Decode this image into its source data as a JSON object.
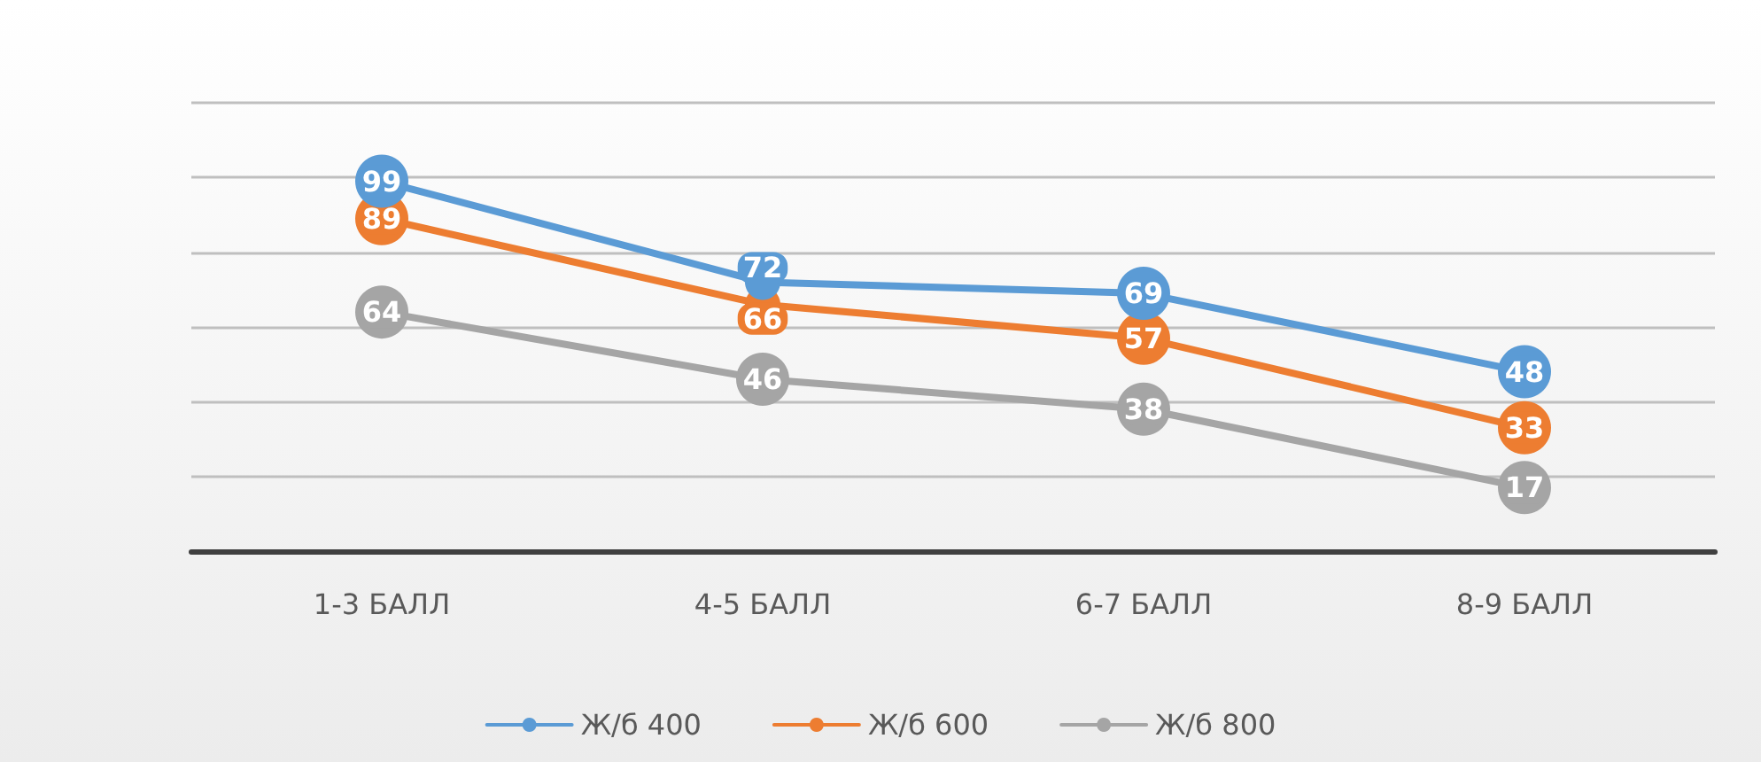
{
  "chart_data": {
    "type": "line",
    "categories": [
      "1-3 БАЛЛ",
      "4-5 БАЛЛ",
      "6-7 БАЛЛ",
      "8-9 БАЛЛ"
    ],
    "series": [
      {
        "name": "Ж/б 400",
        "color": "#5b9bd5",
        "values": [
          99,
          72,
          69,
          48
        ]
      },
      {
        "name": "Ж/б 600",
        "color": "#ed7d31",
        "values": [
          89,
          66,
          57,
          33
        ]
      },
      {
        "name": "Ж/б 800",
        "color": "#a5a5a5",
        "values": [
          64,
          46,
          38,
          17
        ]
      }
    ],
    "ylim": [
      0,
      120
    ],
    "yticks": [
      0,
      20,
      40,
      60,
      80,
      100,
      120
    ],
    "grid": "y",
    "legend": "bottom",
    "tick_labels": "x",
    "marker": "circle",
    "line_style": "solid",
    "data_labels": true
  }
}
